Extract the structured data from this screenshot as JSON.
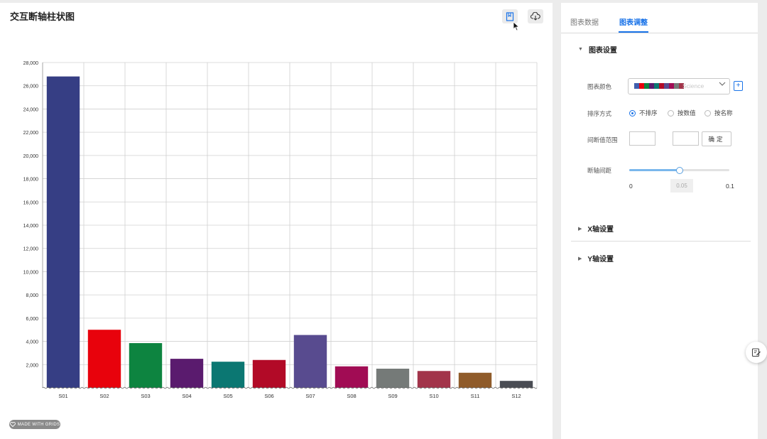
{
  "chart_panel": {
    "title": "交互断轴柱状图",
    "badge": "MADE WITH GRIDS"
  },
  "toolbar": {
    "icons": [
      "bookmark-icon",
      "cloud-download-icon"
    ]
  },
  "chart_data": {
    "type": "bar",
    "categories": [
      "S01",
      "S02",
      "S03",
      "S04",
      "S05",
      "S06",
      "S07",
      "S08",
      "S09",
      "S10",
      "S11",
      "S12"
    ],
    "values": [
      26800,
      5000,
      3850,
      2500,
      2250,
      2400,
      4550,
      1850,
      1650,
      1450,
      1300,
      600
    ],
    "colors": [
      "#363e84",
      "#e8020c",
      "#0d8440",
      "#5a1b6e",
      "#0b7772",
      "#b20a27",
      "#584b8f",
      "#a10c54",
      "#757a78",
      "#a2344a",
      "#8f5b2a",
      "#4a4d54"
    ],
    "ylim": [
      0,
      28000
    ],
    "yticks": [
      2000,
      4000,
      6000,
      8000,
      10000,
      12000,
      14000,
      16000,
      18000,
      20000,
      22000,
      24000,
      26000,
      28000
    ],
    "ytick_labels": [
      "2,000",
      "4,000",
      "6,000",
      "8,000",
      "10,000",
      "12,000",
      "14,000",
      "16,000",
      "18,000",
      "20,000",
      "22,000",
      "24,000",
      "26,000",
      "28,000"
    ],
    "title": "交互断轴柱状图",
    "xlabel": "",
    "ylabel": "",
    "grid": true,
    "broken_axis_interval": 0.05
  },
  "settings": {
    "tabs": [
      {
        "label": "图表数据"
      },
      {
        "label": "图表调整"
      }
    ],
    "section_chart": "图表设置",
    "color_label": "图表颜色",
    "color_scheme": "Science",
    "swatch_colors": [
      "#3f5fae",
      "#e8020c",
      "#0d8440",
      "#5a1b6e",
      "#0b7772",
      "#b20a27",
      "#584b8f",
      "#a10c54",
      "#757a78",
      "#a2344a"
    ],
    "sort_label": "排序方式",
    "sort_options": [
      "不排序",
      "按数值",
      "按名称"
    ],
    "range_label": "间断值范围",
    "range_confirm": "确定",
    "gap_label": "断轴间距",
    "gap_min": "0",
    "gap_max": "0.1",
    "gap_value": "0.05",
    "gap_fraction": 0.5,
    "section_x": "X轴设置",
    "section_y": "Y轴设置"
  }
}
